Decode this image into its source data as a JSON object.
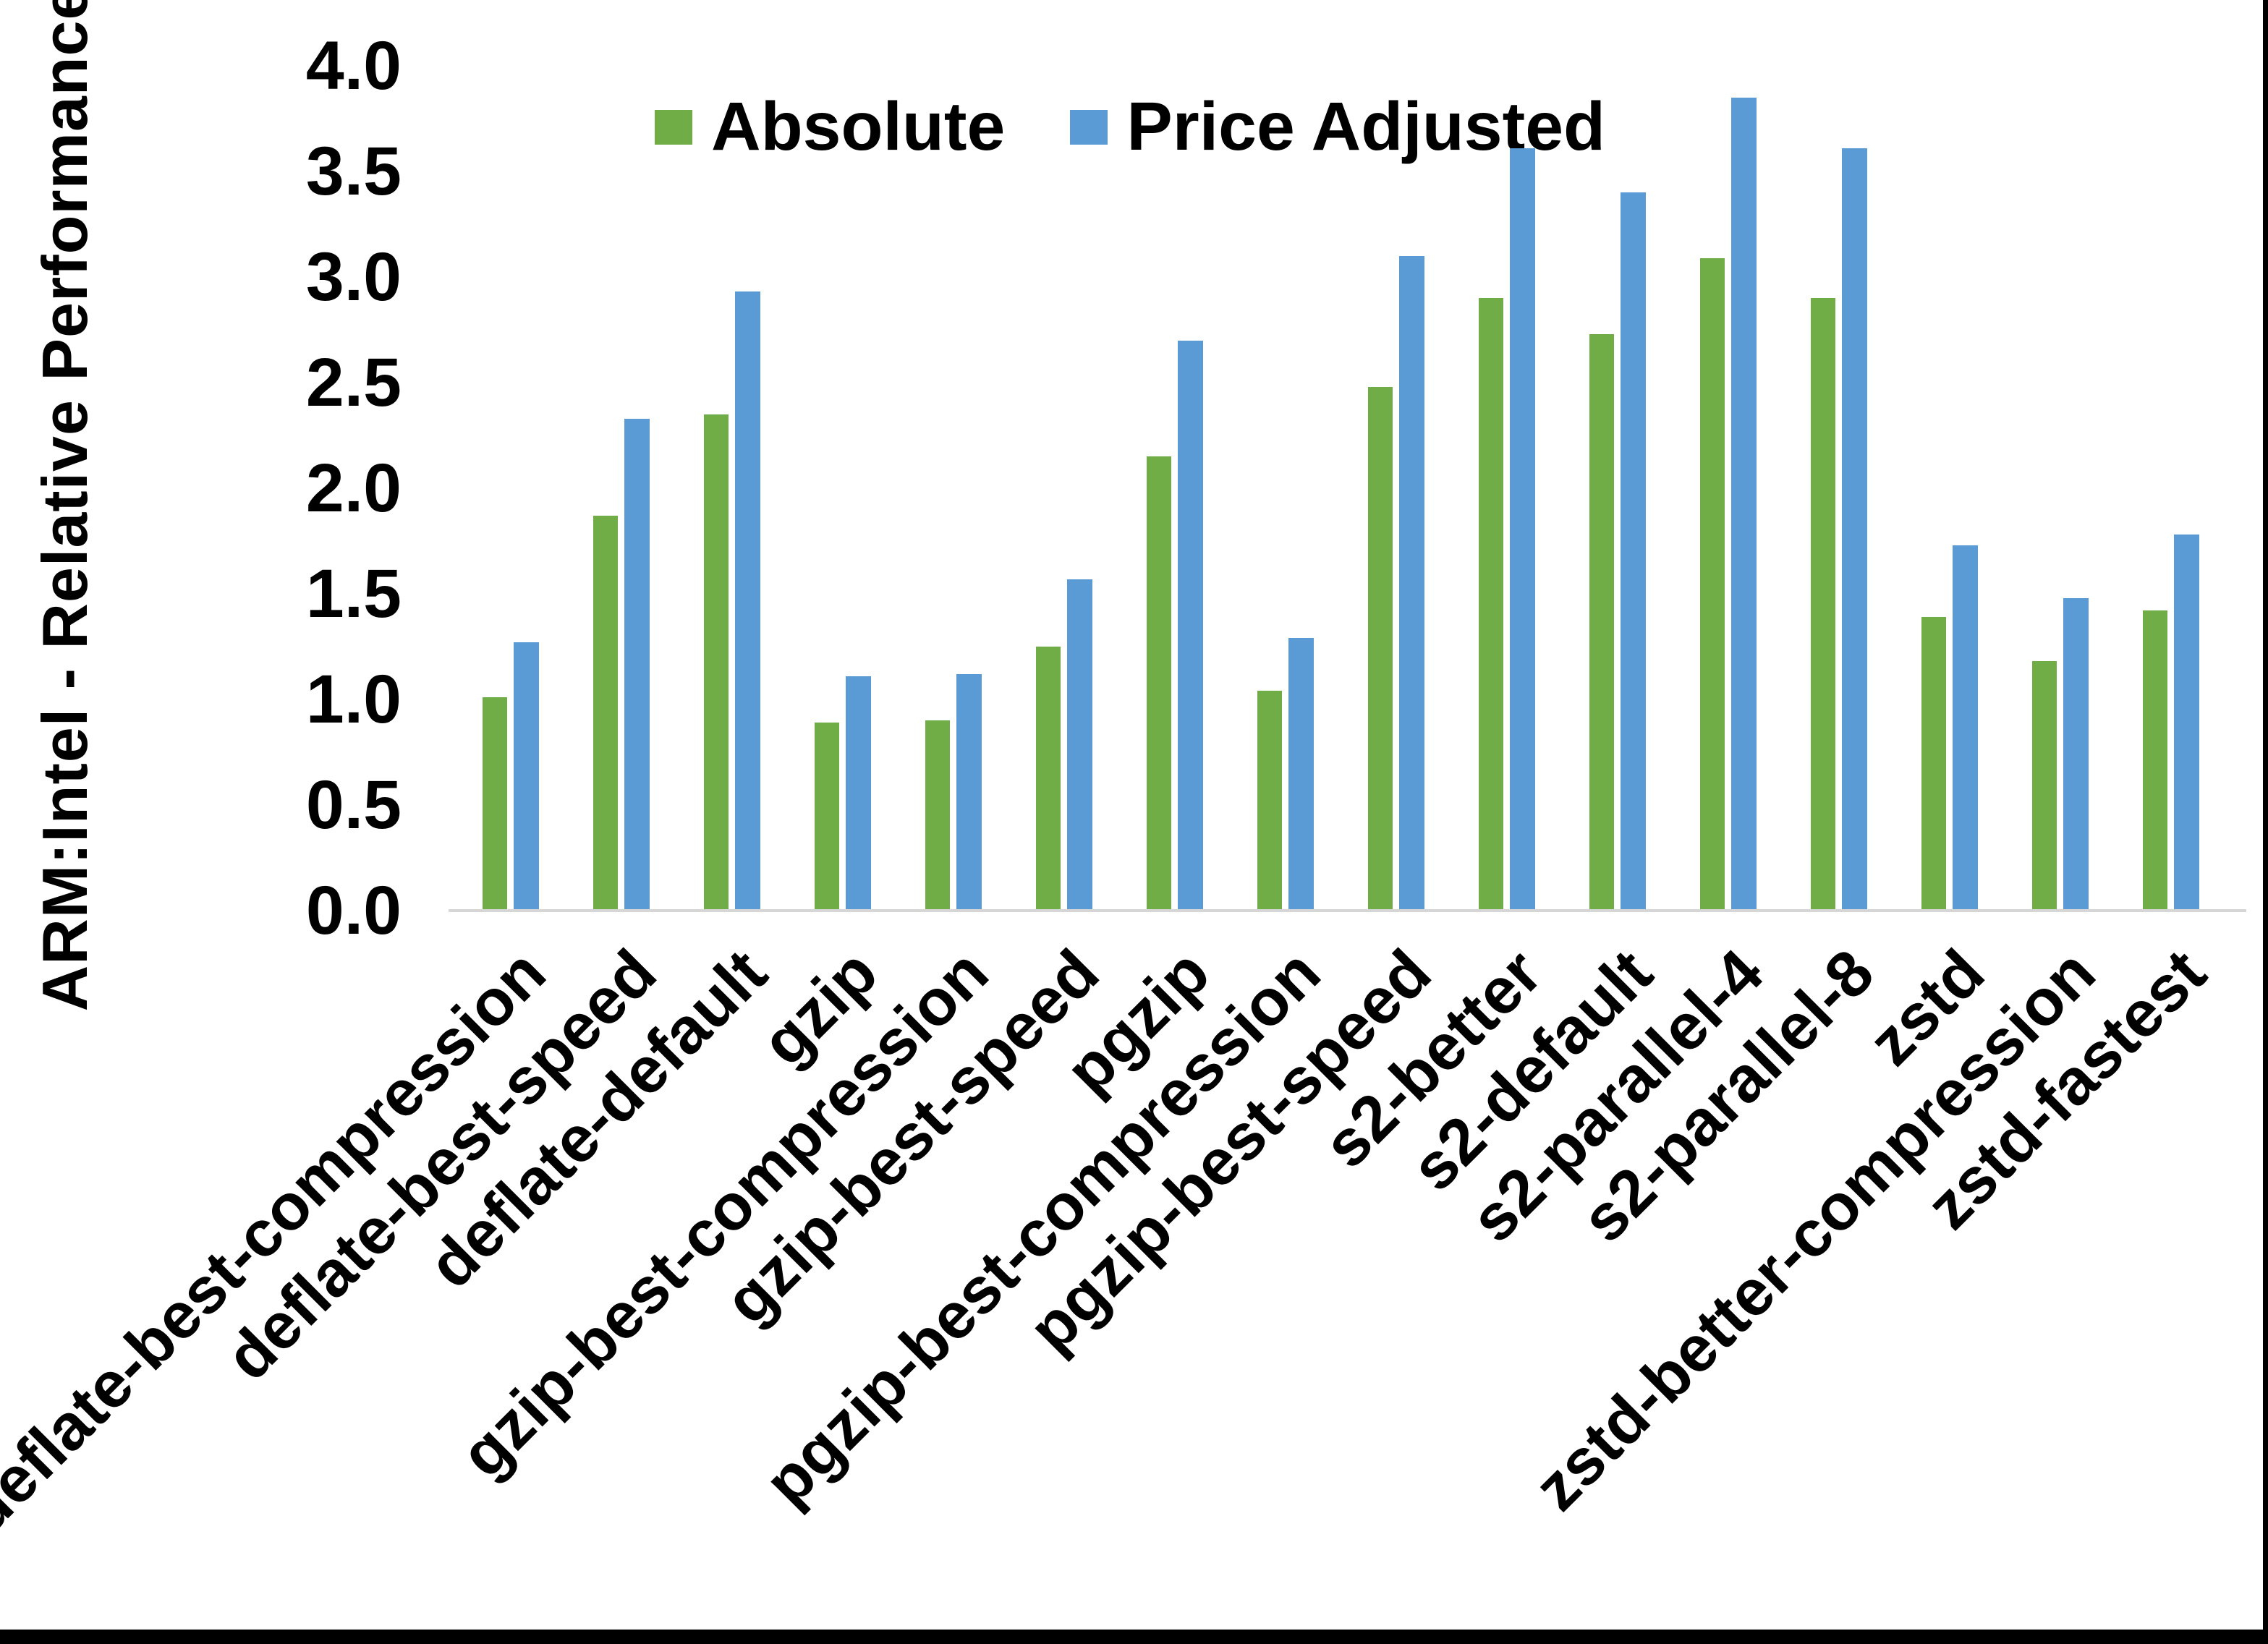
{
  "chart_data": {
    "type": "bar",
    "title": "",
    "xlabel": "",
    "ylabel": "ARM:Intel - Relative Performance",
    "ylim": [
      0.0,
      4.0
    ],
    "ytick_step": 0.5,
    "ytick_labels": [
      "0.0",
      "0.5",
      "1.0",
      "1.5",
      "2.0",
      "2.5",
      "3.0",
      "3.5",
      "4.0"
    ],
    "grid": false,
    "legend_position": "top-center",
    "plot_background": "#ffffff",
    "axis_line_color": "#d6d6d6",
    "categories": [
      "deflate-best-compression",
      "deflate-best-speed",
      "deflate-default",
      "gzip",
      "gzip-best-compression",
      "gzip-best-speed",
      "pgzip",
      "pgzip-best-compression",
      "pgzip-best-speed",
      "s2-better",
      "s2-default",
      "s2-parallel-4",
      "s2-parallel-8",
      "zstd",
      "zstd-better-compression",
      "zstd-fastest"
    ],
    "series": [
      {
        "name": "Absolute",
        "color": "#70AD47",
        "values": [
          1.01,
          1.87,
          2.35,
          0.89,
          0.9,
          1.25,
          2.15,
          1.04,
          2.48,
          2.9,
          2.73,
          3.09,
          2.9,
          1.39,
          1.18,
          1.42
        ]
      },
      {
        "name": "Price Adjusted",
        "color": "#5B9BD5",
        "values": [
          1.27,
          2.33,
          2.93,
          1.11,
          1.12,
          1.57,
          2.7,
          1.29,
          3.1,
          3.61,
          3.4,
          3.85,
          3.61,
          1.73,
          1.48,
          1.78
        ]
      }
    ]
  }
}
